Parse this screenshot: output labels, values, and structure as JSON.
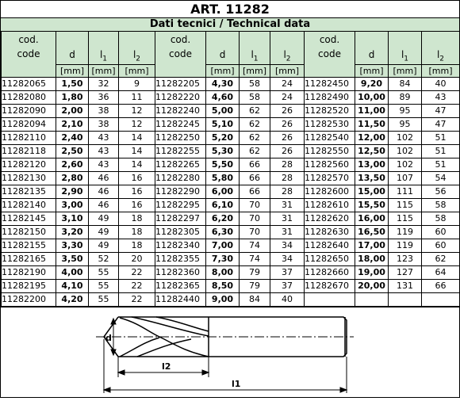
{
  "title": "ART. 11282",
  "subtitle": "Dati tecnici / Technical data",
  "headers": {
    "code_line1": "cod.",
    "code_line2": "code",
    "d": "d",
    "l1": "l1",
    "l2": "l2",
    "unit": "[mm]"
  },
  "columns": [
    [
      {
        "code": "11282065",
        "d": "1,50",
        "l1": "32",
        "l2": "9"
      },
      {
        "code": "11282080",
        "d": "1,80",
        "l1": "36",
        "l2": "11"
      },
      {
        "code": "11282090",
        "d": "2,00",
        "l1": "38",
        "l2": "12"
      },
      {
        "code": "11282094",
        "d": "2,10",
        "l1": "38",
        "l2": "12"
      },
      {
        "code": "11282110",
        "d": "2,40",
        "l1": "43",
        "l2": "14"
      },
      {
        "code": "11282118",
        "d": "2,50",
        "l1": "43",
        "l2": "14"
      },
      {
        "code": "11282120",
        "d": "2,60",
        "l1": "43",
        "l2": "14"
      },
      {
        "code": "11282130",
        "d": "2,80",
        "l1": "46",
        "l2": "16"
      },
      {
        "code": "11282135",
        "d": "2,90",
        "l1": "46",
        "l2": "16"
      },
      {
        "code": "11282140",
        "d": "3,00",
        "l1": "46",
        "l2": "16"
      },
      {
        "code": "11282145",
        "d": "3,10",
        "l1": "49",
        "l2": "18"
      },
      {
        "code": "11282150",
        "d": "3,20",
        "l1": "49",
        "l2": "18"
      },
      {
        "code": "11282155",
        "d": "3,30",
        "l1": "49",
        "l2": "18"
      },
      {
        "code": "11282165",
        "d": "3,50",
        "l1": "52",
        "l2": "20"
      },
      {
        "code": "11282190",
        "d": "4,00",
        "l1": "55",
        "l2": "22"
      },
      {
        "code": "11282195",
        "d": "4,10",
        "l1": "55",
        "l2": "22"
      },
      {
        "code": "11282200",
        "d": "4,20",
        "l1": "55",
        "l2": "22"
      }
    ],
    [
      {
        "code": "11282205",
        "d": "4,30",
        "l1": "58",
        "l2": "24"
      },
      {
        "code": "11282220",
        "d": "4,60",
        "l1": "58",
        "l2": "24"
      },
      {
        "code": "11282240",
        "d": "5,00",
        "l1": "62",
        "l2": "26"
      },
      {
        "code": "11282245",
        "d": "5,10",
        "l1": "62",
        "l2": "26"
      },
      {
        "code": "11282250",
        "d": "5,20",
        "l1": "62",
        "l2": "26"
      },
      {
        "code": "11282255",
        "d": "5,30",
        "l1": "62",
        "l2": "26"
      },
      {
        "code": "11282265",
        "d": "5,50",
        "l1": "66",
        "l2": "28"
      },
      {
        "code": "11282280",
        "d": "5,80",
        "l1": "66",
        "l2": "28"
      },
      {
        "code": "11282290",
        "d": "6,00",
        "l1": "66",
        "l2": "28"
      },
      {
        "code": "11282295",
        "d": "6,10",
        "l1": "70",
        "l2": "31"
      },
      {
        "code": "11282297",
        "d": "6,20",
        "l1": "70",
        "l2": "31"
      },
      {
        "code": "11282305",
        "d": "6,30",
        "l1": "70",
        "l2": "31"
      },
      {
        "code": "11282340",
        "d": "7,00",
        "l1": "74",
        "l2": "34"
      },
      {
        "code": "11282355",
        "d": "7,30",
        "l1": "74",
        "l2": "34"
      },
      {
        "code": "11282360",
        "d": "8,00",
        "l1": "79",
        "l2": "37"
      },
      {
        "code": "11282365",
        "d": "8,50",
        "l1": "79",
        "l2": "37"
      },
      {
        "code": "11282440",
        "d": "9,00",
        "l1": "84",
        "l2": "40"
      }
    ],
    [
      {
        "code": "11282450",
        "d": "9,20",
        "l1": "84",
        "l2": "40"
      },
      {
        "code": "11282490",
        "d": "10,00",
        "l1": "89",
        "l2": "43"
      },
      {
        "code": "11282520",
        "d": "11,00",
        "l1": "95",
        "l2": "47"
      },
      {
        "code": "11282530",
        "d": "11,50",
        "l1": "95",
        "l2": "47"
      },
      {
        "code": "11282540",
        "d": "12,00",
        "l1": "102",
        "l2": "51"
      },
      {
        "code": "11282550",
        "d": "12,50",
        "l1": "102",
        "l2": "51"
      },
      {
        "code": "11282560",
        "d": "13,00",
        "l1": "102",
        "l2": "51"
      },
      {
        "code": "11282570",
        "d": "13,50",
        "l1": "107",
        "l2": "54"
      },
      {
        "code": "11282600",
        "d": "15,00",
        "l1": "111",
        "l2": "56"
      },
      {
        "code": "11282610",
        "d": "15,50",
        "l1": "115",
        "l2": "58"
      },
      {
        "code": "11282620",
        "d": "16,00",
        "l1": "115",
        "l2": "58"
      },
      {
        "code": "11282630",
        "d": "16,50",
        "l1": "119",
        "l2": "60"
      },
      {
        "code": "11282640",
        "d": "17,00",
        "l1": "119",
        "l2": "60"
      },
      {
        "code": "11282650",
        "d": "18,00",
        "l1": "123",
        "l2": "62"
      },
      {
        "code": "11282660",
        "d": "19,00",
        "l1": "127",
        "l2": "64"
      },
      {
        "code": "11282670",
        "d": "20,00",
        "l1": "131",
        "l2": "66"
      }
    ]
  ],
  "drawing": {
    "d_label": "d",
    "l1_label": "l1",
    "l2_label": "l2"
  }
}
